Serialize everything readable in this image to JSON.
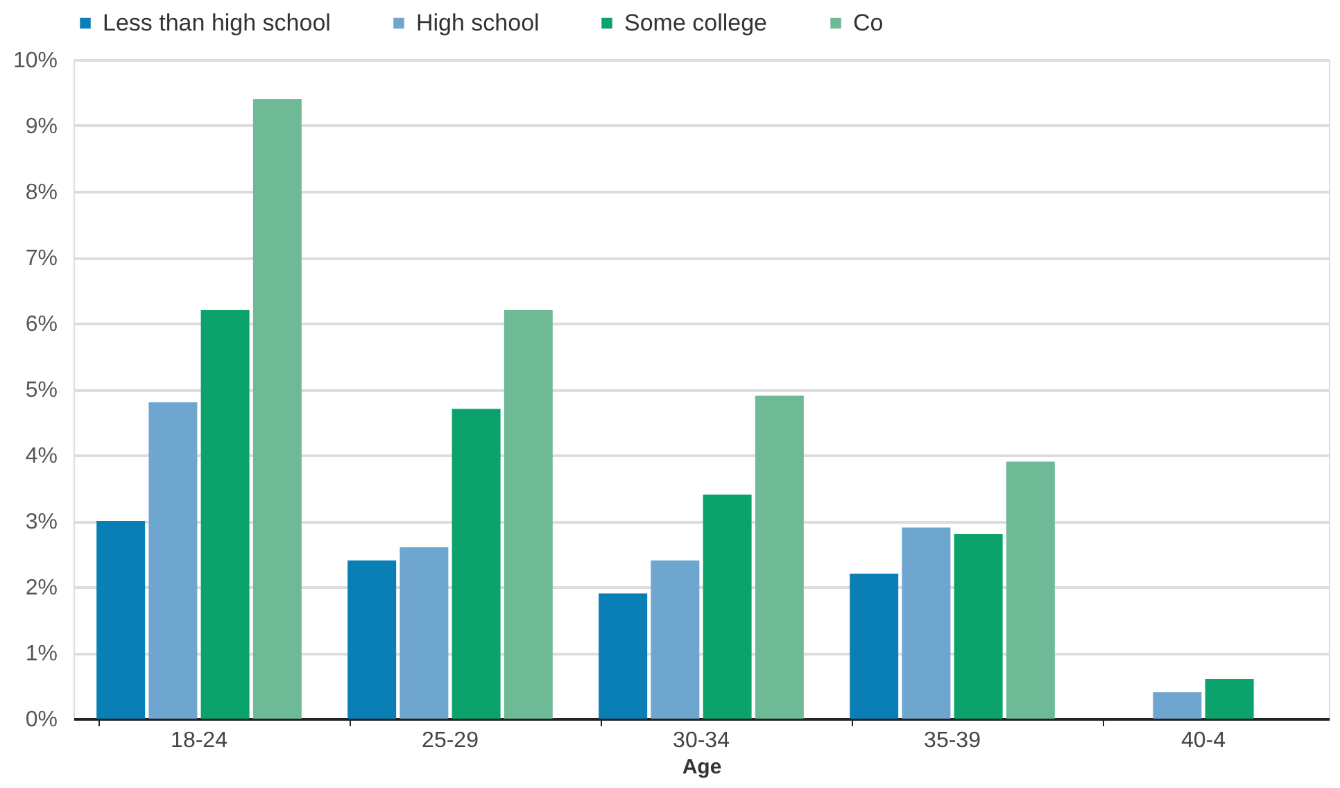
{
  "chart_data": {
    "type": "bar",
    "xlabel": "Age",
    "categories": [
      "18-24",
      "25-29",
      "30-34",
      "35-39",
      "40-4"
    ],
    "series": [
      {
        "name": "Less than high school",
        "color": "#0a7fb5",
        "values": [
          3.0,
          2.4,
          1.9,
          2.2,
          null
        ]
      },
      {
        "name": "High school",
        "color": "#6ea6cf",
        "values": [
          4.8,
          2.6,
          2.4,
          2.9,
          0.4
        ]
      },
      {
        "name": "Some college",
        "color": "#0ba36b",
        "values": [
          6.2,
          4.7,
          3.4,
          2.8,
          0.6
        ]
      },
      {
        "name": "Co",
        "color": "#6fba96",
        "values": [
          9.4,
          6.2,
          4.9,
          3.9,
          null
        ]
      }
    ],
    "ylim": [
      0,
      10
    ],
    "yticks": [
      {
        "value": 0,
        "label": "0%"
      },
      {
        "value": 1,
        "label": "1%"
      },
      {
        "value": 2,
        "label": "2%"
      },
      {
        "value": 3,
        "label": "3%"
      },
      {
        "value": 4,
        "label": "4%"
      },
      {
        "value": 5,
        "label": "5%"
      },
      {
        "value": 6,
        "label": "6%"
      },
      {
        "value": 7,
        "label": "7%"
      },
      {
        "value": 8,
        "label": "8%"
      },
      {
        "value": 9,
        "label": "9%"
      },
      {
        "value": 10,
        "label": "10%"
      }
    ],
    "grid": "y",
    "legend": "top"
  }
}
